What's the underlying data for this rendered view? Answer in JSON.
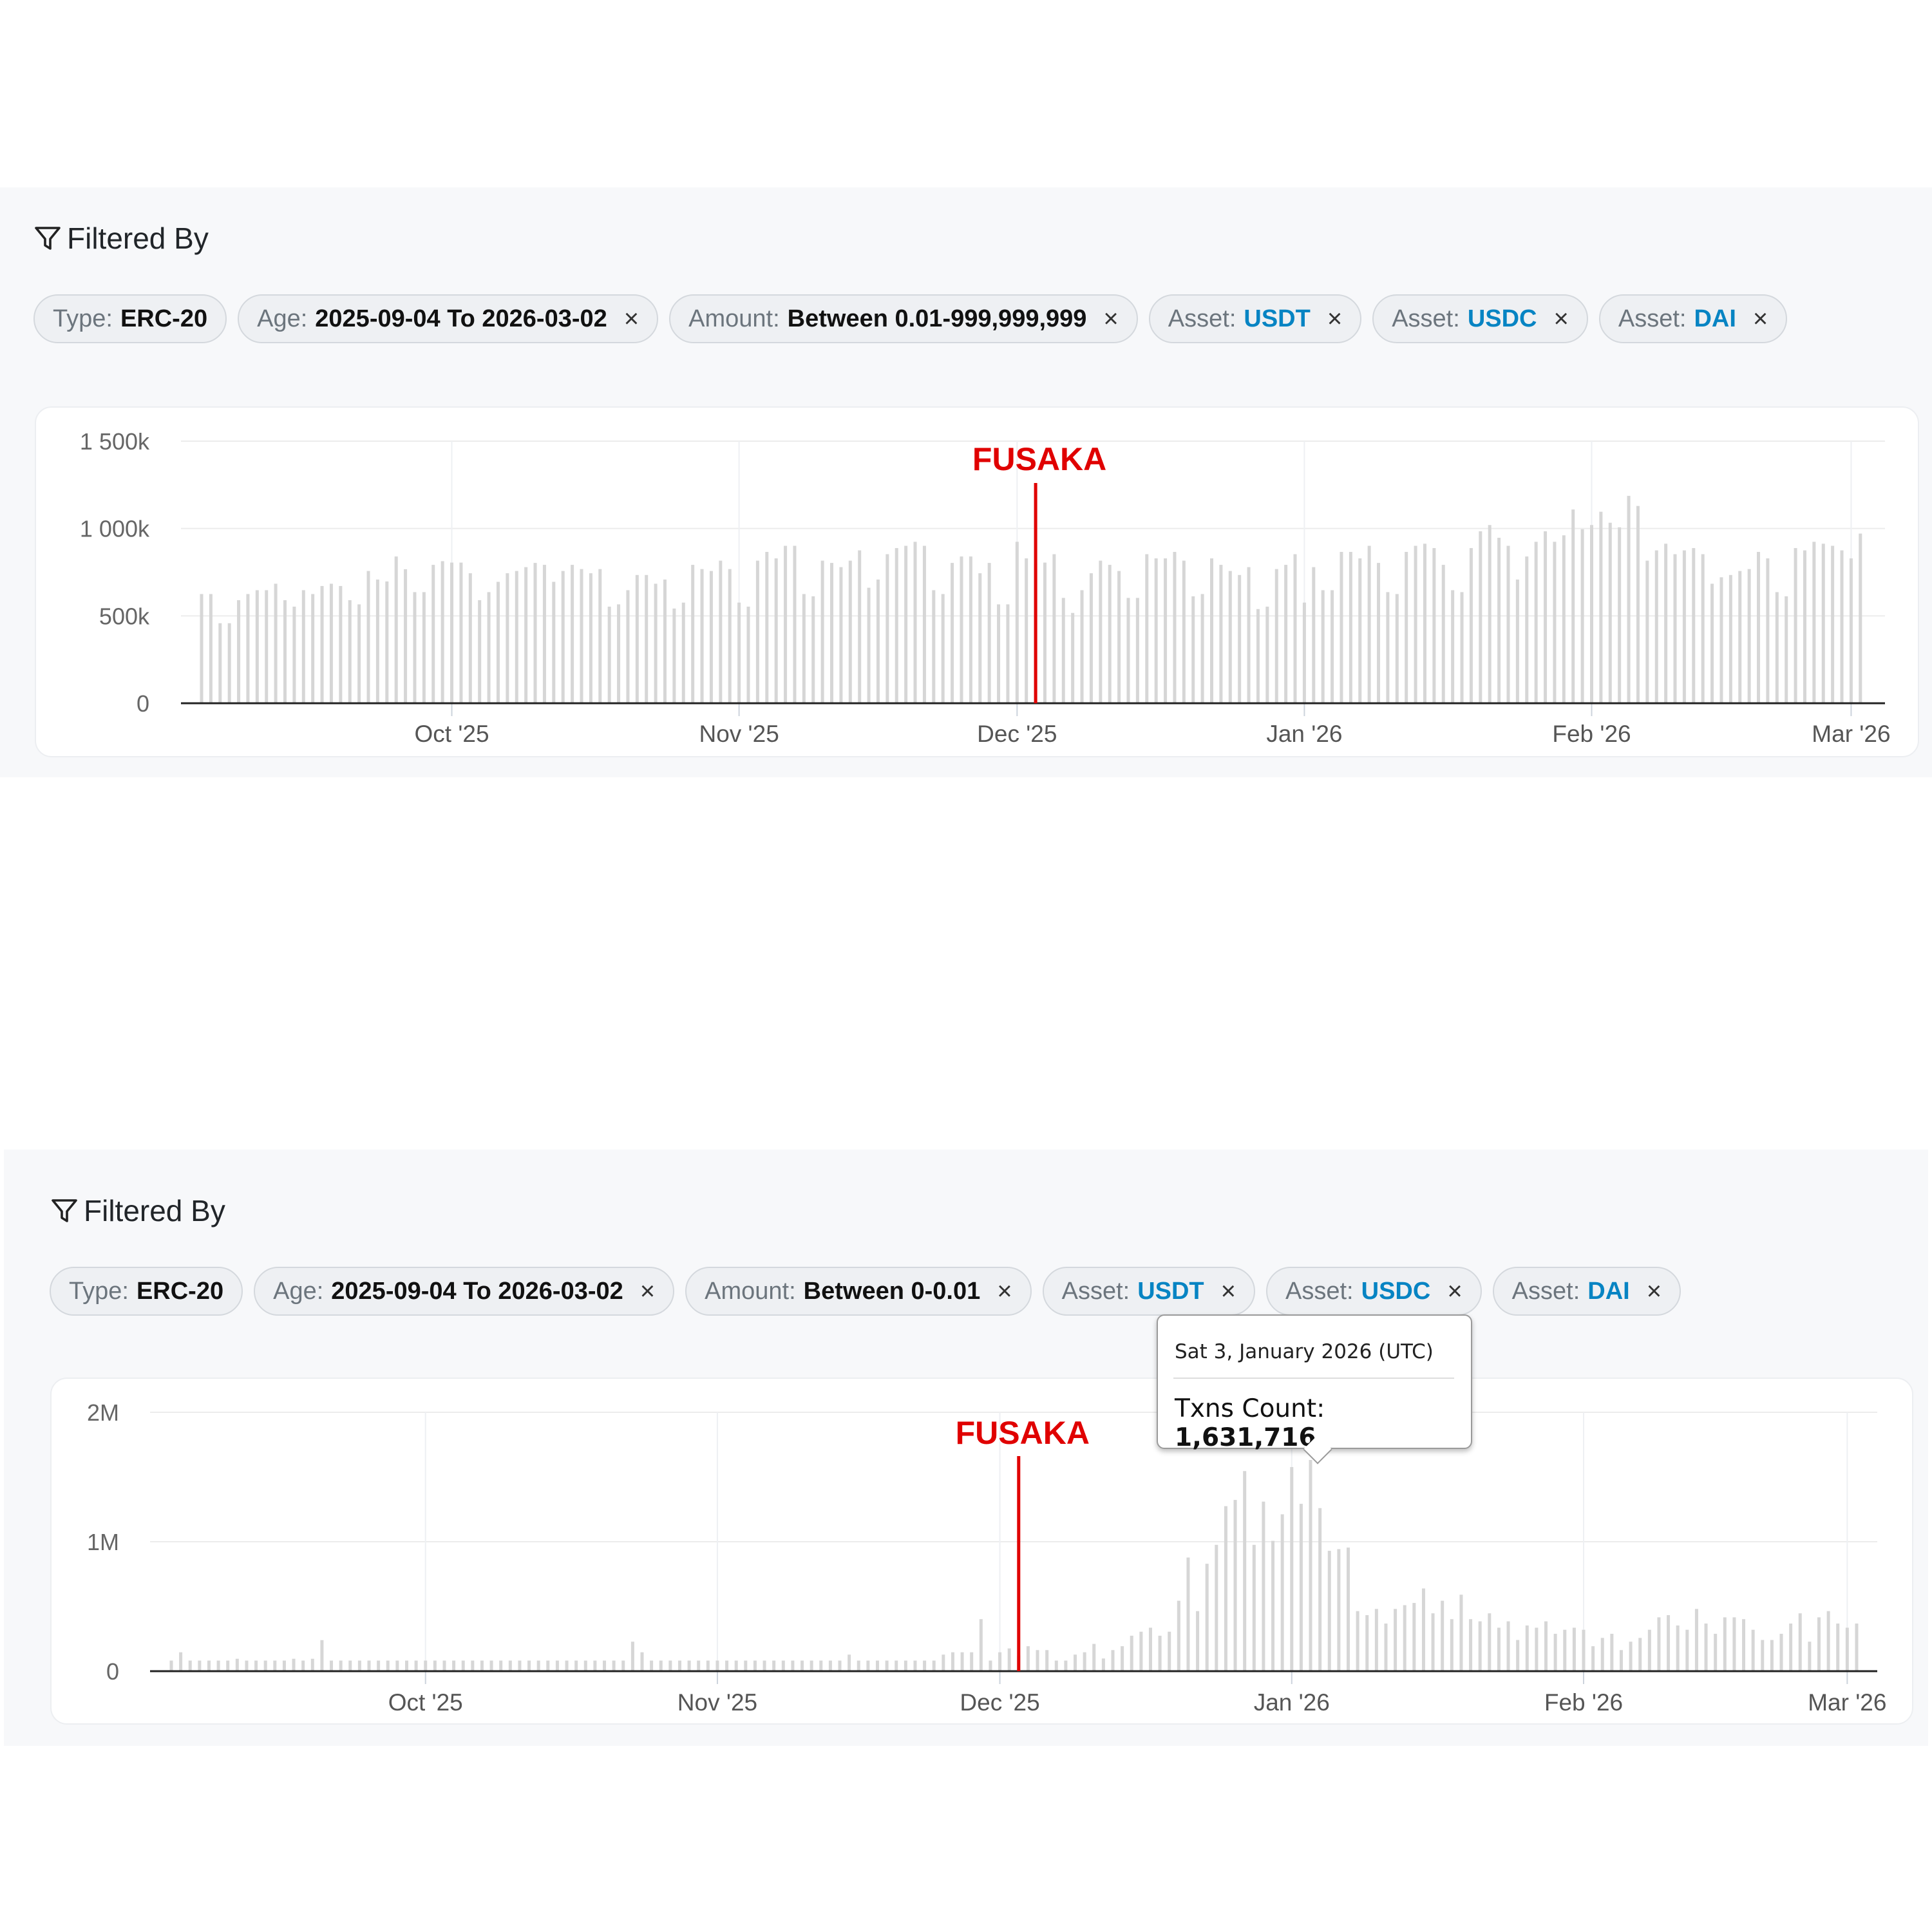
{
  "panels": [
    {
      "title": "Filtered By",
      "chips": [
        {
          "label": "Type:",
          "value": "ERC-20",
          "removable": false,
          "accent": false
        },
        {
          "label": "Age:",
          "value": "2025-09-04 To 2026-03-02",
          "removable": true,
          "accent": false
        },
        {
          "label": "Amount:",
          "value": "Between 0.01-999,999,999",
          "removable": true,
          "accent": false
        },
        {
          "label": "Asset:",
          "value": "USDT",
          "removable": true,
          "accent": true
        },
        {
          "label": "Asset:",
          "value": "USDC",
          "removable": true,
          "accent": true
        },
        {
          "label": "Asset:",
          "value": "DAI",
          "removable": true,
          "accent": true
        }
      ],
      "close_glyph": "×"
    },
    {
      "title": "Filtered By",
      "chips": [
        {
          "label": "Type:",
          "value": "ERC-20",
          "removable": false,
          "accent": false
        },
        {
          "label": "Age:",
          "value": "2025-09-04 To 2026-03-02",
          "removable": true,
          "accent": false
        },
        {
          "label": "Amount:",
          "value": "Between 0-0.01",
          "removable": true,
          "accent": false
        },
        {
          "label": "Asset:",
          "value": "USDT",
          "removable": true,
          "accent": true
        },
        {
          "label": "Asset:",
          "value": "USDC",
          "removable": true,
          "accent": true
        },
        {
          "label": "Asset:",
          "value": "DAI",
          "removable": true,
          "accent": true
        }
      ],
      "close_glyph": "×"
    }
  ],
  "colors": {
    "accent": "#0784c3",
    "bar": "#d6d6d6",
    "annotation": "#e00000",
    "panel_bg": "#f7f8fa"
  },
  "icons": {
    "filter": "funnel-icon",
    "remove": "close-icon"
  },
  "chart_data": [
    {
      "type": "bar",
      "interval": "daily",
      "start_date": "2025-09-04",
      "end_date": "2026-03-02",
      "ylim": [
        0,
        1500000
      ],
      "yticks": [
        {
          "value": 0,
          "label": "0"
        },
        {
          "value": 500000,
          "label": "500k"
        },
        {
          "value": 1000000,
          "label": "1 000k"
        },
        {
          "value": 1500000,
          "label": "1 500k"
        }
      ],
      "xticks": [
        {
          "date": "2025-10-01",
          "label": "Oct '25"
        },
        {
          "date": "2025-11-01",
          "label": "Nov '25"
        },
        {
          "date": "2025-12-01",
          "label": "Dec '25"
        },
        {
          "date": "2026-01-01",
          "label": "Jan '26"
        },
        {
          "date": "2026-02-01",
          "label": "Feb '26"
        },
        {
          "date": "2026-03-01",
          "label": "Mar '26"
        }
      ],
      "grid": true,
      "annotation": {
        "label": "FUSAKA",
        "date": "2025-12-03"
      },
      "values": [
        625000,
        625000,
        458000,
        458000,
        590000,
        625000,
        647000,
        647000,
        684000,
        590000,
        553000,
        647000,
        625000,
        671000,
        684000,
        671000,
        590000,
        566000,
        757000,
        708000,
        697000,
        840000,
        767000,
        636000,
        636000,
        792000,
        813000,
        805000,
        805000,
        744000,
        590000,
        636000,
        695000,
        744000,
        757000,
        779000,
        803000,
        792000,
        695000,
        757000,
        792000,
        768000,
        744000,
        768000,
        553000,
        566000,
        647000,
        734000,
        734000,
        684000,
        708000,
        542000,
        576000,
        792000,
        768000,
        757000,
        816000,
        768000,
        576000,
        553000,
        816000,
        866000,
        829000,
        901000,
        901000,
        625000,
        612000,
        816000,
        803000,
        779000,
        816000,
        875000,
        661000,
        708000,
        853000,
        888000,
        901000,
        924000,
        901000,
        647000,
        625000,
        803000,
        840000,
        840000,
        744000,
        803000,
        566000,
        566000,
        924000,
        829000,
        800000,
        805000,
        853000,
        603000,
        517000,
        647000,
        744000,
        816000,
        792000,
        757000,
        603000,
        603000,
        853000,
        829000,
        829000,
        866000,
        816000,
        612000,
        625000,
        829000,
        792000,
        757000,
        734000,
        779000,
        539000,
        553000,
        768000,
        792000,
        853000,
        576000,
        779000,
        647000,
        647000,
        866000,
        866000,
        829000,
        901000,
        803000,
        636000,
        625000,
        866000,
        901000,
        913000,
        888000,
        792000,
        647000,
        636000,
        888000,
        984000,
        1020000,
        947000,
        901000,
        708000,
        840000,
        924000,
        984000,
        924000,
        961000,
        1109000,
        996000,
        1020000,
        1096000,
        1033000,
        1007000,
        1187000,
        1129000,
        816000,
        875000,
        913000,
        853000,
        875000,
        888000,
        853000,
        684000,
        721000,
        734000,
        757000,
        768000,
        866000,
        829000,
        636000,
        612000,
        888000,
        875000,
        924000,
        913000,
        901000,
        875000,
        829000,
        971000
      ]
    },
    {
      "type": "bar",
      "interval": "daily",
      "start_date": "2025-09-04",
      "end_date": "2026-03-02",
      "ylim": [
        0,
        2000000
      ],
      "yticks": [
        {
          "value": 0,
          "label": "0"
        },
        {
          "value": 1000000,
          "label": "1M"
        },
        {
          "value": 2000000,
          "label": "2M"
        }
      ],
      "xticks": [
        {
          "date": "2025-10-01",
          "label": "Oct '25"
        },
        {
          "date": "2025-11-01",
          "label": "Nov '25"
        },
        {
          "date": "2025-12-01",
          "label": "Dec '25"
        },
        {
          "date": "2026-01-01",
          "label": "Jan '26"
        },
        {
          "date": "2026-02-01",
          "label": "Feb '26"
        },
        {
          "date": "2026-03-01",
          "label": "Mar '26"
        }
      ],
      "grid": true,
      "annotation": {
        "label": "FUSAKA",
        "date": "2025-12-03"
      },
      "tooltip": {
        "date": "Sat 3, January 2026 (UTC)",
        "label": "Txns Count:",
        "value": "1,631,716",
        "point_date": "2026-01-03"
      },
      "values": [
        82000,
        146000,
        82000,
        82000,
        82000,
        82000,
        82000,
        96000,
        82000,
        82000,
        82000,
        82000,
        82000,
        96000,
        82000,
        96000,
        240000,
        82000,
        82000,
        82000,
        82000,
        82000,
        82000,
        82000,
        82000,
        82000,
        82000,
        82000,
        82000,
        82000,
        82000,
        82000,
        82000,
        82000,
        82000,
        82000,
        82000,
        82000,
        82000,
        82000,
        82000,
        82000,
        82000,
        82000,
        82000,
        82000,
        82000,
        82000,
        82000,
        228000,
        146000,
        82000,
        82000,
        82000,
        82000,
        82000,
        82000,
        82000,
        82000,
        82000,
        82000,
        82000,
        82000,
        82000,
        82000,
        82000,
        82000,
        82000,
        82000,
        82000,
        82000,
        82000,
        128000,
        82000,
        82000,
        82000,
        82000,
        82000,
        82000,
        82000,
        82000,
        82000,
        128000,
        146000,
        146000,
        146000,
        402000,
        82000,
        146000,
        176000,
        120000,
        193000,
        163000,
        163000,
        82000,
        82000,
        128000,
        146000,
        211000,
        98000,
        163000,
        193000,
        274000,
        305000,
        336000,
        274000,
        305000,
        544000,
        878000,
        464000,
        830000,
        976000,
        1275000,
        1323000,
        1546000,
        976000,
        1310000,
        1007000,
        1212000,
        1577000,
        1293000,
        1631716,
        1260000,
        930000,
        943000,
        955000,
        464000,
        433000,
        481000,
        368000,
        481000,
        510000,
        527000,
        639000,
        447000,
        544000,
        402000,
        591000,
        402000,
        385000,
        447000,
        336000,
        385000,
        241000,
        353000,
        336000,
        385000,
        289000,
        320000,
        336000,
        320000,
        193000,
        257000,
        289000,
        163000,
        228000,
        257000,
        320000,
        416000,
        433000,
        353000,
        320000,
        481000,
        368000,
        289000,
        416000,
        416000,
        402000,
        320000,
        241000,
        241000,
        289000,
        368000,
        447000,
        228000,
        416000,
        464000,
        368000,
        336000,
        368000
      ]
    }
  ]
}
